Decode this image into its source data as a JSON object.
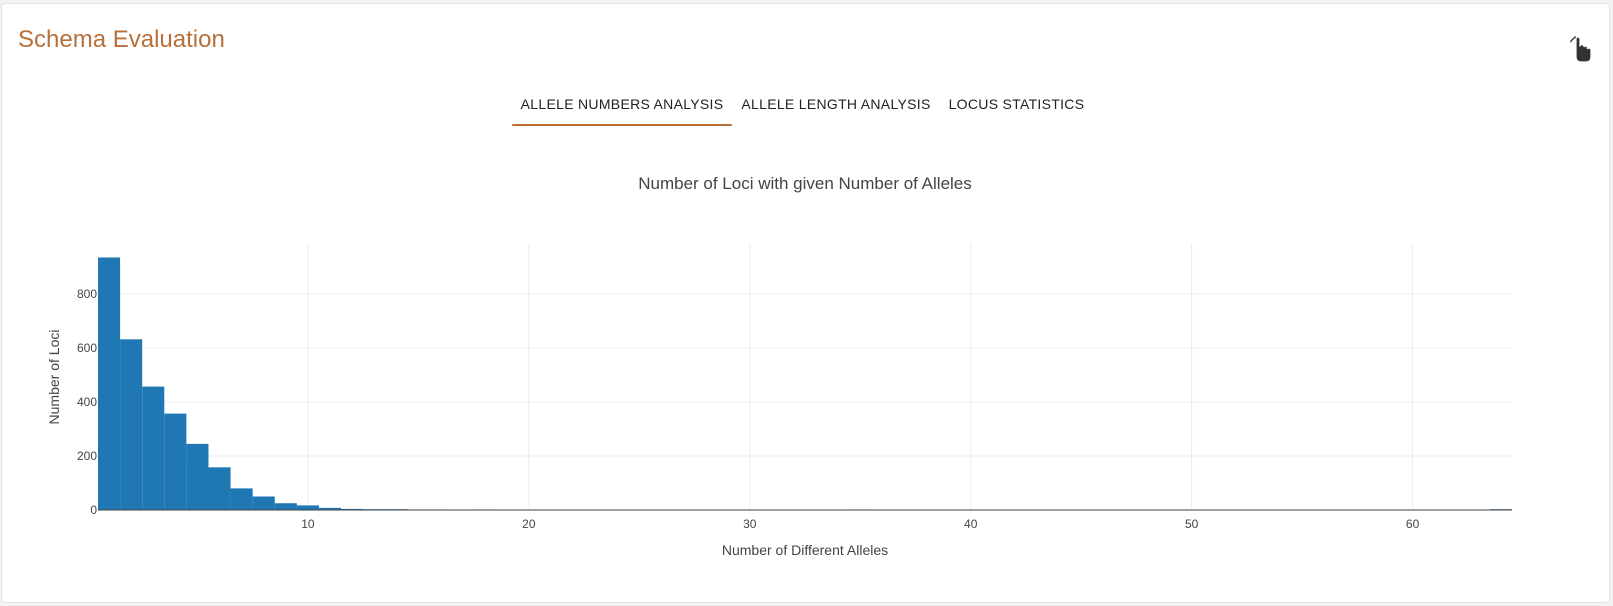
{
  "panel": {
    "title": "Schema Evaluation"
  },
  "tabs": [
    {
      "label": "ALLELE NUMBERS ANALYSIS",
      "active": true
    },
    {
      "label": "ALLELE LENGTH ANALYSIS",
      "active": false
    },
    {
      "label": "LOCUS STATISTICS",
      "active": false
    }
  ],
  "icons": {
    "collapse": "chevron-up-icon",
    "cursor": "hand-pointer-icon"
  },
  "colors": {
    "accent": "#b8703a",
    "bar": "#1f77b4"
  },
  "chart_data": {
    "type": "bar",
    "title": "Number of Loci with given Number of Alleles",
    "xlabel": "Number of Different Alleles",
    "ylabel": "Number of Loci",
    "xlim": [
      0.5,
      64.5
    ],
    "ylim": [
      0,
      985
    ],
    "x_ticks": [
      10,
      20,
      30,
      40,
      50,
      60
    ],
    "y_ticks": [
      0,
      200,
      400,
      600,
      800
    ],
    "grid": true,
    "legend": "none",
    "bin_width": 1,
    "bins": [
      {
        "x": 1,
        "y": 935
      },
      {
        "x": 2,
        "y": 632
      },
      {
        "x": 3,
        "y": 457
      },
      {
        "x": 4,
        "y": 357
      },
      {
        "x": 5,
        "y": 245
      },
      {
        "x": 6,
        "y": 158
      },
      {
        "x": 7,
        "y": 80
      },
      {
        "x": 8,
        "y": 50
      },
      {
        "x": 9,
        "y": 25
      },
      {
        "x": 10,
        "y": 17
      },
      {
        "x": 11,
        "y": 8
      },
      {
        "x": 12,
        "y": 4
      },
      {
        "x": 13,
        "y": 3
      },
      {
        "x": 14,
        "y": 3
      },
      {
        "x": 15,
        "y": 2
      },
      {
        "x": 16,
        "y": 2
      },
      {
        "x": 18,
        "y": 2
      },
      {
        "x": 35,
        "y": 2
      },
      {
        "x": 64,
        "y": 3
      }
    ]
  }
}
